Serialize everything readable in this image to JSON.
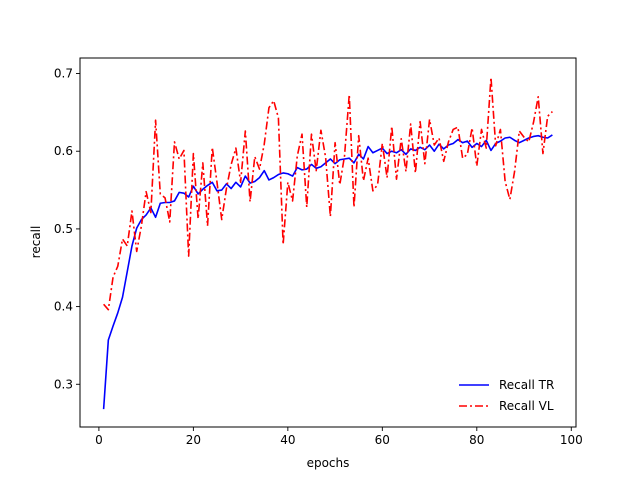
{
  "chart_data": {
    "type": "line",
    "xlabel": "epochs",
    "ylabel": "recall",
    "xlim": [
      -4,
      101
    ],
    "ylim": [
      0.245,
      0.72
    ],
    "xticks": [
      0,
      20,
      40,
      60,
      80,
      100
    ],
    "yticks": [
      0.3,
      0.4,
      0.5,
      0.6,
      0.7
    ],
    "legend_position": "lower-right",
    "grid": false,
    "series": [
      {
        "name": "Recall TR",
        "color": "#0000ff",
        "style": "solid",
        "x": [
          1,
          2,
          3,
          4,
          5,
          6,
          7,
          8,
          9,
          10,
          11,
          12,
          13,
          14,
          15,
          16,
          17,
          18,
          19,
          20,
          21,
          22,
          23,
          24,
          25,
          26,
          27,
          28,
          29,
          30,
          31,
          32,
          33,
          34,
          35,
          36,
          37,
          38,
          39,
          40,
          41,
          42,
          43,
          44,
          45,
          46,
          47,
          48,
          49,
          50,
          51,
          52,
          53,
          54,
          55,
          56,
          57,
          58,
          59,
          60,
          61,
          62,
          63,
          64,
          65,
          66,
          67,
          68,
          69,
          70,
          71,
          72,
          73,
          74,
          75,
          76,
          77,
          78,
          79,
          80,
          81,
          82,
          83,
          84,
          85,
          86,
          87,
          88,
          89,
          90,
          91,
          92,
          93,
          94,
          95,
          96
        ],
        "values": [
          0.268,
          0.357,
          0.375,
          0.392,
          0.412,
          0.445,
          0.478,
          0.501,
          0.512,
          0.518,
          0.527,
          0.515,
          0.533,
          0.534,
          0.534,
          0.536,
          0.547,
          0.546,
          0.541,
          0.555,
          0.545,
          0.551,
          0.556,
          0.56,
          0.549,
          0.55,
          0.558,
          0.552,
          0.56,
          0.554,
          0.568,
          0.559,
          0.561,
          0.566,
          0.575,
          0.563,
          0.566,
          0.57,
          0.572,
          0.571,
          0.568,
          0.579,
          0.576,
          0.577,
          0.583,
          0.578,
          0.58,
          0.585,
          0.59,
          0.584,
          0.589,
          0.59,
          0.591,
          0.585,
          0.596,
          0.59,
          0.606,
          0.598,
          0.601,
          0.604,
          0.597,
          0.6,
          0.598,
          0.602,
          0.596,
          0.603,
          0.601,
          0.605,
          0.602,
          0.608,
          0.6,
          0.609,
          0.603,
          0.608,
          0.61,
          0.615,
          0.611,
          0.613,
          0.605,
          0.61,
          0.606,
          0.614,
          0.601,
          0.61,
          0.613,
          0.617,
          0.618,
          0.614,
          0.611,
          0.614,
          0.617,
          0.619,
          0.62,
          0.618,
          0.617,
          0.621
        ]
      },
      {
        "name": "Recall VL",
        "color": "#ff0000",
        "style": "dashdot",
        "x": [
          1,
          2,
          3,
          4,
          5,
          6,
          7,
          8,
          9,
          10,
          11,
          12,
          13,
          14,
          15,
          16,
          17,
          18,
          19,
          20,
          21,
          22,
          23,
          24,
          25,
          26,
          27,
          28,
          29,
          30,
          31,
          32,
          33,
          34,
          35,
          36,
          37,
          38,
          39,
          40,
          41,
          42,
          43,
          44,
          45,
          46,
          47,
          48,
          49,
          50,
          51,
          52,
          53,
          54,
          55,
          56,
          57,
          58,
          59,
          60,
          61,
          62,
          63,
          64,
          65,
          66,
          67,
          68,
          69,
          70,
          71,
          72,
          73,
          74,
          75,
          76,
          77,
          78,
          79,
          80,
          81,
          82,
          83,
          84,
          85,
          86,
          87,
          88,
          89,
          90,
          91,
          92,
          93,
          94,
          95,
          96
        ],
        "values": [
          0.403,
          0.396,
          0.438,
          0.452,
          0.487,
          0.478,
          0.523,
          0.471,
          0.504,
          0.548,
          0.521,
          0.64,
          0.545,
          0.54,
          0.509,
          0.612,
          0.59,
          0.601,
          0.465,
          0.597,
          0.513,
          0.585,
          0.504,
          0.605,
          0.56,
          0.512,
          0.552,
          0.583,
          0.604,
          0.56,
          0.626,
          0.535,
          0.593,
          0.577,
          0.609,
          0.656,
          0.665,
          0.643,
          0.48,
          0.56,
          0.536,
          0.594,
          0.622,
          0.528,
          0.622,
          0.575,
          0.627,
          0.592,
          0.516,
          0.611,
          0.557,
          0.594,
          0.673,
          0.528,
          0.62,
          0.562,
          0.591,
          0.549,
          0.557,
          0.61,
          0.566,
          0.632,
          0.564,
          0.616,
          0.574,
          0.635,
          0.572,
          0.638,
          0.584,
          0.641,
          0.608,
          0.617,
          0.587,
          0.612,
          0.628,
          0.631,
          0.591,
          0.596,
          0.63,
          0.581,
          0.628,
          0.604,
          0.695,
          0.607,
          0.628,
          0.561,
          0.538,
          0.574,
          0.626,
          0.618,
          0.612,
          0.637,
          0.67,
          0.597,
          0.645,
          0.651
        ]
      }
    ]
  }
}
